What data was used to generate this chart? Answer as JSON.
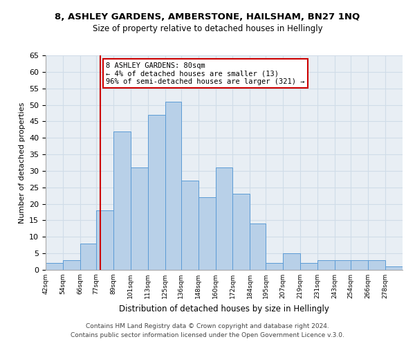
{
  "title1": "8, ASHLEY GARDENS, AMBERSTONE, HAILSHAM, BN27 1NQ",
  "title2": "Size of property relative to detached houses in Hellingly",
  "xlabel": "Distribution of detached houses by size in Hellingly",
  "ylabel": "Number of detached properties",
  "bar_edges": [
    42,
    54,
    66,
    77,
    89,
    101,
    113,
    125,
    136,
    148,
    160,
    172,
    184,
    195,
    207,
    219,
    231,
    243,
    254,
    266,
    278,
    290
  ],
  "bar_heights": [
    2,
    3,
    8,
    18,
    42,
    31,
    47,
    51,
    27,
    22,
    31,
    23,
    14,
    2,
    5,
    2,
    3,
    3,
    3,
    3,
    1
  ],
  "bar_color": "#b8d0e8",
  "bar_edgecolor": "#5b9bd5",
  "ylim": [
    0,
    65
  ],
  "yticks": [
    0,
    5,
    10,
    15,
    20,
    25,
    30,
    35,
    40,
    45,
    50,
    55,
    60,
    65
  ],
  "red_line_x": 80,
  "annotation_title": "8 ASHLEY GARDENS: 80sqm",
  "annotation_line1": "← 4% of detached houses are smaller (13)",
  "annotation_line2": "96% of semi-detached houses are larger (321) →",
  "annotation_box_color": "#ffffff",
  "annotation_box_edgecolor": "#cc0000",
  "red_line_color": "#cc0000",
  "footer1": "Contains HM Land Registry data © Crown copyright and database right 2024.",
  "footer2": "Contains public sector information licensed under the Open Government Licence v.3.0.",
  "tick_labels": [
    "42sqm",
    "54sqm",
    "66sqm",
    "77sqm",
    "89sqm",
    "101sqm",
    "113sqm",
    "125sqm",
    "136sqm",
    "148sqm",
    "160sqm",
    "172sqm",
    "184sqm",
    "195sqm",
    "207sqm",
    "219sqm",
    "231sqm",
    "243sqm",
    "254sqm",
    "266sqm",
    "278sqm"
  ],
  "grid_color": "#d0dce8",
  "background_color": "#e8eef4"
}
